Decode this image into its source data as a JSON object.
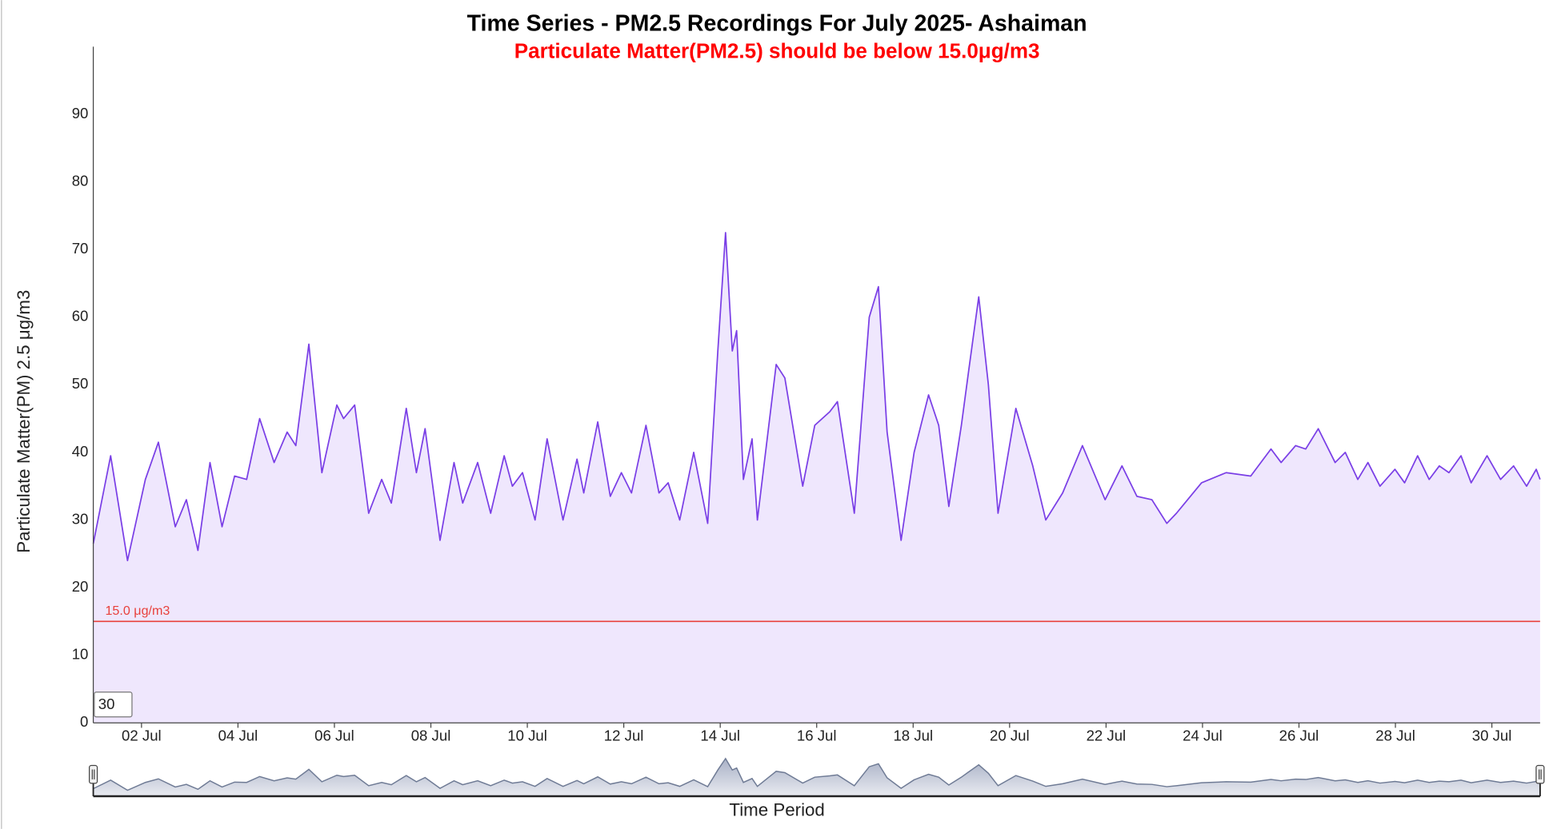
{
  "chart_data": {
    "type": "area",
    "title": "Time Series - PM2.5 Recordings For July 2025- Ashaiman",
    "subtitle": "Particulate Matter(PM2.5) should be below 15.0μg/m3",
    "y_label": "Particulate Matter(PM) 2.5 μg/m3",
    "x_label": "Time Period",
    "color": "#7a3fe6",
    "fill_color": "#efe7fd",
    "grid": false,
    "threshold": 15,
    "threshold_label": "15.0 μg/m3",
    "threshold_color": "#e8413c",
    "range_input": "30",
    "xlim": [
      1,
      31
    ],
    "xticks": [
      {
        "value": 2,
        "label": "02 Jul"
      },
      {
        "value": 4,
        "label": "04 Jul"
      },
      {
        "value": 6,
        "label": "06 Jul"
      },
      {
        "value": 8,
        "label": "08 Jul"
      },
      {
        "value": 10,
        "label": "10 Jul"
      },
      {
        "value": 12,
        "label": "12 Jul"
      },
      {
        "value": 14,
        "label": "14 Jul"
      },
      {
        "value": 16,
        "label": "16 Jul"
      },
      {
        "value": 18,
        "label": "18 Jul"
      },
      {
        "value": 20,
        "label": "20 Jul"
      },
      {
        "value": 22,
        "label": "22 Jul"
      },
      {
        "value": 24,
        "label": "24 Jul"
      },
      {
        "value": 26,
        "label": "26 Jul"
      },
      {
        "value": 28,
        "label": "28 Jul"
      },
      {
        "value": 30,
        "label": "30 Jul"
      }
    ],
    "ylim": [
      0,
      100
    ],
    "yticks": [
      0,
      10,
      20,
      30,
      40,
      50,
      60,
      70,
      80,
      90
    ],
    "x": [
      1.0,
      1.36,
      1.71,
      2.08,
      2.35,
      2.7,
      2.93,
      3.17,
      3.42,
      3.67,
      3.93,
      4.18,
      4.45,
      4.75,
      5.02,
      5.2,
      5.47,
      5.74,
      6.05,
      6.19,
      6.42,
      6.71,
      6.98,
      7.18,
      7.49,
      7.7,
      7.88,
      8.19,
      8.48,
      8.66,
      8.97,
      9.24,
      9.52,
      9.69,
      9.9,
      10.16,
      10.41,
      10.74,
      11.03,
      11.17,
      11.46,
      11.72,
      11.95,
      12.16,
      12.46,
      12.73,
      12.92,
      13.16,
      13.45,
      13.74,
      13.95,
      14.11,
      14.25,
      14.34,
      14.48,
      14.66,
      14.77,
      15.16,
      15.34,
      15.71,
      15.96,
      16.27,
      16.43,
      16.78,
      17.09,
      17.28,
      17.46,
      17.75,
      18.02,
      18.32,
      18.53,
      18.74,
      19.0,
      19.15,
      19.36,
      19.56,
      19.76,
      20.13,
      20.48,
      20.75,
      21.1,
      21.51,
      21.98,
      22.33,
      22.64,
      22.95,
      23.26,
      23.46,
      23.98,
      24.49,
      25.0,
      25.42,
      25.63,
      25.93,
      26.14,
      26.4,
      26.75,
      26.96,
      27.22,
      27.43,
      27.68,
      27.99,
      28.19,
      28.46,
      28.7,
      28.91,
      29.11,
      29.36,
      29.57,
      29.9,
      30.18,
      30.45,
      30.72,
      30.92,
      31.0
    ],
    "values": [
      26.5,
      39.5,
      24,
      36,
      41.5,
      29,
      33,
      25.5,
      38.5,
      29,
      36.5,
      36,
      45,
      38.5,
      43,
      41,
      56,
      37,
      47,
      45,
      47,
      31,
      36,
      32.5,
      46.5,
      37,
      43.5,
      27,
      38.5,
      32.5,
      38.5,
      31,
      39.5,
      35,
      37,
      30,
      42,
      30,
      39,
      34,
      44.5,
      33.5,
      37,
      34,
      44,
      34,
      35.5,
      30,
      40,
      29.5,
      55,
      72.5,
      55,
      58,
      36,
      42,
      30,
      53,
      51,
      35,
      44,
      46,
      47.5,
      31,
      60,
      64.5,
      43,
      27,
      40,
      48.5,
      44,
      32,
      44,
      52,
      63,
      50,
      31,
      46.5,
      38,
      30,
      34,
      41,
      33,
      38,
      33.5,
      33,
      29.5,
      31,
      35.5,
      37,
      36.5,
      40.5,
      38.5,
      41,
      40.5,
      43.5,
      38.5,
      40,
      36,
      38.5,
      35,
      37.5,
      35.5,
      39.5,
      36,
      38,
      37,
      39.5,
      35.5,
      39.5,
      36,
      38,
      35,
      37.5,
      36
    ]
  }
}
